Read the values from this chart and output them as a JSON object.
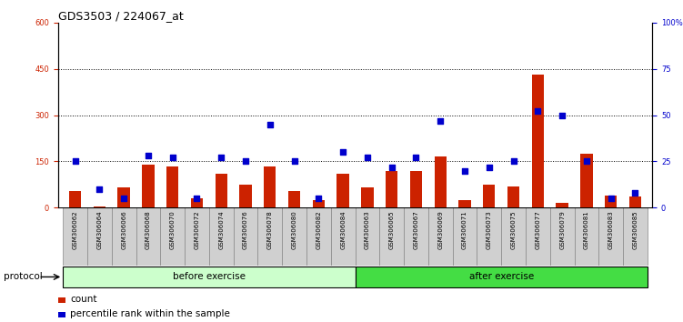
{
  "title": "GDS3503 / 224067_at",
  "samples": [
    "GSM306062",
    "GSM306064",
    "GSM306066",
    "GSM306068",
    "GSM306070",
    "GSM306072",
    "GSM306074",
    "GSM306076",
    "GSM306078",
    "GSM306080",
    "GSM306082",
    "GSM306084",
    "GSM306063",
    "GSM306065",
    "GSM306067",
    "GSM306069",
    "GSM306071",
    "GSM306073",
    "GSM306075",
    "GSM306077",
    "GSM306079",
    "GSM306081",
    "GSM306083",
    "GSM306085"
  ],
  "counts": [
    55,
    5,
    65,
    140,
    135,
    30,
    110,
    75,
    135,
    55,
    25,
    110,
    65,
    120,
    120,
    165,
    25,
    75,
    70,
    430,
    15,
    175,
    40,
    35
  ],
  "percentiles": [
    25,
    10,
    5,
    28,
    27,
    5,
    27,
    25,
    45,
    25,
    5,
    30,
    27,
    22,
    27,
    47,
    20,
    22,
    25,
    52,
    50,
    25,
    5,
    8
  ],
  "before_exercise_count": 12,
  "after_exercise_count": 12,
  "bar_color": "#cc2200",
  "dot_color": "#0000cc",
  "before_color": "#ccffcc",
  "after_color": "#44dd44",
  "protocol_label": "protocol",
  "before_label": "before exercise",
  "after_label": "after exercise",
  "legend_count": "count",
  "legend_pct": "percentile rank within the sample",
  "ylim_left": [
    0,
    600
  ],
  "ylim_right": [
    0,
    100
  ],
  "yticks_left": [
    0,
    150,
    300,
    450,
    600
  ],
  "yticks_right": [
    0,
    25,
    50,
    75,
    100
  ],
  "grid_dotted_values": [
    150,
    300,
    450
  ],
  "title_fontsize": 9,
  "tick_fontsize": 6,
  "label_fontsize": 8
}
